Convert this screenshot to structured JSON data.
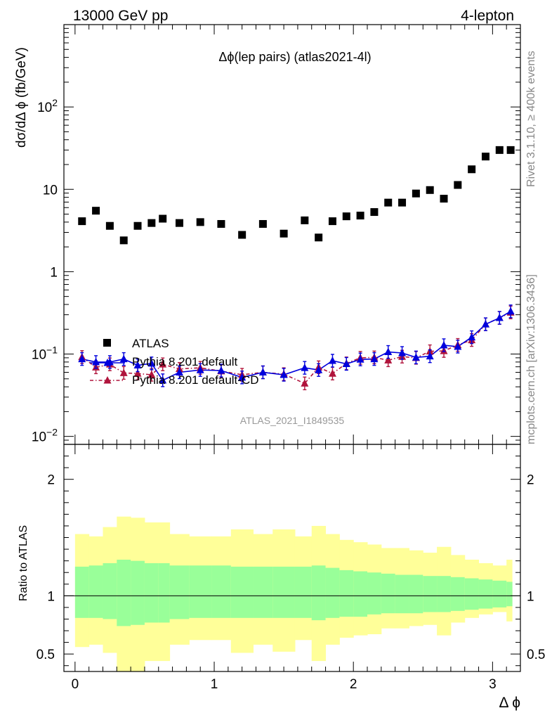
{
  "header": {
    "left": "13000 GeV pp",
    "right": "4-lepton"
  },
  "side": {
    "rivet": "Rivet 3.1.10, ≥ 400k events",
    "mcplots": "mcplots.cern.ch [arXiv:1306.3436]"
  },
  "chart_data": {
    "type": "scatter",
    "title": "Δϕ(lep pairs) (atlas2021-4l)",
    "analysis_label": "ATLAS_2021_I1849535",
    "xlabel": "Δ ϕ",
    "ylabel_main": "dσ/dΔ ϕ (fb/GeV)",
    "ylabel_ratio": "Ratio to ATLAS",
    "xlim": [
      -0.08,
      3.2
    ],
    "ylim_main": [
      0.008,
      1000
    ],
    "yscale_main": "log",
    "ylim_ratio": [
      0.35,
      2.3
    ],
    "x_ticks": [
      "0",
      "1",
      "2",
      "3"
    ],
    "y_ticks_main": [
      {
        "value": 0.01,
        "base": "10",
        "exp": "−2"
      },
      {
        "value": 0.1,
        "base": "10",
        "exp": "−1"
      },
      {
        "value": 1,
        "base": "1",
        "exp": ""
      },
      {
        "value": 10,
        "base": "10",
        "exp": ""
      },
      {
        "value": 100,
        "base": "10",
        "exp": "2"
      }
    ],
    "y_ticks_ratio": [
      "0.5",
      "1",
      "2"
    ],
    "legend": {
      "position": "lower-left",
      "entries": [
        "ATLAS",
        "Pythia 8.201 default",
        "Pythia 8.201 default-CD"
      ]
    },
    "x": [
      0.05,
      0.15,
      0.25,
      0.35,
      0.45,
      0.55,
      0.63,
      0.75,
      0.9,
      1.05,
      1.2,
      1.35,
      1.5,
      1.65,
      1.75,
      1.85,
      1.95,
      2.05,
      2.15,
      2.25,
      2.35,
      2.45,
      2.55,
      2.65,
      2.75,
      2.85,
      2.95,
      3.05,
      3.13
    ],
    "bin_edges": [
      0.0,
      0.1,
      0.2,
      0.3,
      0.4,
      0.5,
      0.6,
      0.68,
      0.82,
      0.98,
      1.12,
      1.28,
      1.42,
      1.58,
      1.7,
      1.8,
      1.9,
      2.0,
      2.1,
      2.2,
      2.3,
      2.4,
      2.5,
      2.6,
      2.7,
      2.8,
      2.9,
      3.0,
      3.1,
      3.14
    ],
    "series": [
      {
        "name": "ATLAS",
        "color": "#000000",
        "marker": "square",
        "values": [
          4.1,
          5.5,
          3.6,
          2.4,
          3.6,
          3.9,
          4.4,
          3.9,
          4.0,
          3.8,
          2.8,
          3.8,
          2.9,
          4.2,
          2.6,
          4.1,
          4.7,
          4.8,
          5.3,
          6.9,
          6.9,
          8.9,
          9.8,
          7.7,
          11.3,
          17.5,
          25.0,
          30.0,
          30.0
        ]
      },
      {
        "name": "Pythia 8.201 default",
        "color": "#0000dd",
        "marker": "triangle",
        "values": [
          0.087,
          0.08,
          0.08,
          0.087,
          0.073,
          0.077,
          0.048,
          0.06,
          0.064,
          0.063,
          0.052,
          0.06,
          0.056,
          0.068,
          0.064,
          0.083,
          0.076,
          0.086,
          0.087,
          0.106,
          0.103,
          0.091,
          0.094,
          0.128,
          0.123,
          0.16,
          0.23,
          0.275,
          0.33
        ]
      },
      {
        "name": "Pythia 8.201 default-CD",
        "color": "#b0143c",
        "marker": "triangle",
        "values": [
          0.092,
          0.069,
          0.075,
          0.059,
          0.058,
          0.056,
          0.075,
          0.066,
          0.068,
          0.062,
          0.056,
          0.06,
          0.057,
          0.044,
          0.069,
          0.058,
          0.077,
          0.09,
          0.091,
          0.084,
          0.093,
          0.09,
          0.108,
          0.109,
          0.129,
          0.148,
          0.23,
          0.275,
          0.32
        ]
      }
    ],
    "ratio_bands": {
      "inner_color": "#99ff99",
      "outer_color": "#ffff99",
      "inner_lo": [
        0.81,
        0.81,
        0.8,
        0.74,
        0.75,
        0.77,
        0.77,
        0.8,
        0.81,
        0.81,
        0.81,
        0.81,
        0.81,
        0.81,
        0.79,
        0.81,
        0.82,
        0.82,
        0.84,
        0.85,
        0.85,
        0.85,
        0.86,
        0.86,
        0.87,
        0.88,
        0.89,
        0.9,
        0.91
      ],
      "inner_hi": [
        1.25,
        1.26,
        1.28,
        1.31,
        1.3,
        1.28,
        1.28,
        1.26,
        1.26,
        1.26,
        1.25,
        1.25,
        1.25,
        1.25,
        1.26,
        1.24,
        1.22,
        1.21,
        1.2,
        1.19,
        1.18,
        1.18,
        1.17,
        1.17,
        1.16,
        1.15,
        1.14,
        1.13,
        1.12
      ],
      "outer_lo": [
        0.56,
        0.58,
        0.51,
        0.35,
        0.35,
        0.44,
        0.44,
        0.58,
        0.62,
        0.62,
        0.51,
        0.58,
        0.52,
        0.62,
        0.44,
        0.58,
        0.64,
        0.66,
        0.67,
        0.72,
        0.72,
        0.74,
        0.75,
        0.66,
        0.77,
        0.81,
        0.84,
        0.86,
        0.78
      ],
      "outer_hi": [
        1.53,
        1.51,
        1.59,
        1.68,
        1.67,
        1.63,
        1.63,
        1.53,
        1.51,
        1.51,
        1.57,
        1.53,
        1.57,
        1.51,
        1.6,
        1.53,
        1.48,
        1.46,
        1.44,
        1.41,
        1.41,
        1.39,
        1.37,
        1.42,
        1.35,
        1.31,
        1.28,
        1.26,
        1.31
      ]
    }
  }
}
